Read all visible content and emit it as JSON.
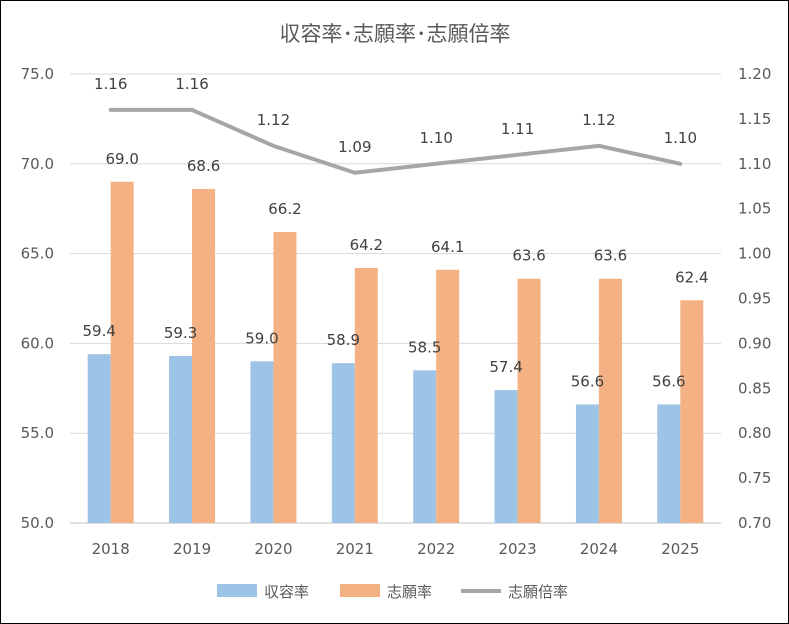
{
  "chart_data": {
    "type": "bar",
    "title": "収容率･志願率･志願倍率",
    "categories": [
      "2018",
      "2019",
      "2020",
      "2021",
      "2022",
      "2023",
      "2024",
      "2025"
    ],
    "series": [
      {
        "name": "収容率",
        "kind": "bar",
        "axis": "left",
        "color": "#9DC3E6",
        "values": [
          59.4,
          59.3,
          59.0,
          58.9,
          58.5,
          57.4,
          56.6,
          56.6
        ],
        "labels": [
          "59.4",
          "59.3",
          "59.0",
          "58.9",
          "58.5",
          "57.4",
          "56.6",
          "56.6"
        ]
      },
      {
        "name": "志願率",
        "kind": "bar",
        "axis": "left",
        "color": "#F4B183",
        "values": [
          69.0,
          68.6,
          66.2,
          64.2,
          64.1,
          63.6,
          63.6,
          62.4
        ],
        "labels": [
          "69.0",
          "68.6",
          "66.2",
          "64.2",
          "64.1",
          "63.6",
          "63.6",
          "62.4"
        ]
      },
      {
        "name": "志願倍率",
        "kind": "line",
        "axis": "right",
        "color": "#A6A6A6",
        "values": [
          1.16,
          1.16,
          1.12,
          1.09,
          1.1,
          1.11,
          1.12,
          1.1
        ],
        "labels": [
          "1.16",
          "1.16",
          "1.12",
          "1.09",
          "1.10",
          "1.11",
          "1.12",
          "1.10"
        ]
      }
    ],
    "y_left": {
      "min": 50,
      "max": 75,
      "ticks": [
        "50.0",
        "55.0",
        "60.0",
        "65.0",
        "70.0",
        "75.0"
      ]
    },
    "y_right": {
      "min": 0.7,
      "max": 1.2,
      "ticks": [
        "0.70",
        "0.75",
        "0.80",
        "0.85",
        "0.90",
        "0.95",
        "1.00",
        "1.05",
        "1.10",
        "1.15",
        "1.20"
      ]
    },
    "grid": true,
    "legend_position": "bottom"
  }
}
